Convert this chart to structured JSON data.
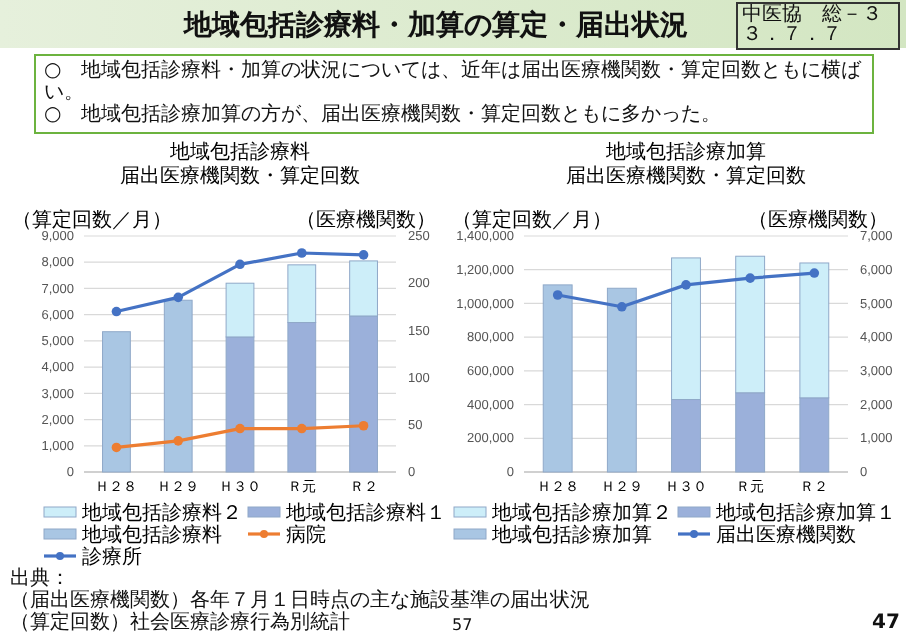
{
  "chart_data": [
    {
      "type": "bar",
      "stacked": true,
      "title": "地域包括診療料",
      "subtitle": "届出医療機関数・算定回数",
      "ylabel": "（算定回数／月）",
      "y2label": "（医療機関数）",
      "categories": [
        "Ｈ２８",
        "Ｈ２９",
        "Ｈ３０",
        "Ｒ元",
        "Ｒ２"
      ],
      "series": [
        {
          "name": "地域包括診療料",
          "color": "#a9c6e3",
          "values": [
            5350,
            6550,
            null,
            null,
            null
          ]
        },
        {
          "name": "地域包括診療料１",
          "color": "#9bb0da",
          "values": [
            null,
            null,
            5150,
            5700,
            5950
          ]
        },
        {
          "name": "地域包括診療料２",
          "color": "#cdeef9",
          "values": [
            null,
            null,
            2050,
            2200,
            2100
          ]
        },
        {
          "name": "病院",
          "type": "line",
          "axis": "y2",
          "color": "#ed7d31",
          "values": [
            26,
            33,
            46,
            46,
            49
          ]
        },
        {
          "name": "診療所",
          "type": "line",
          "axis": "y2",
          "color": "#4472c4",
          "values": [
            170,
            185,
            220,
            232,
            230
          ]
        }
      ],
      "ylim": [
        0,
        9000
      ],
      "yticks": [
        0,
        {
          "value": 1000,
          "label": "1,000"
        },
        {
          "value": 2000,
          "label": "2,000"
        },
        {
          "value": 3000,
          "label": "3,000"
        },
        {
          "value": 4000,
          "label": "4,000"
        },
        {
          "value": 5000,
          "label": "5,000"
        },
        {
          "value": 6000,
          "label": "6,000"
        },
        {
          "value": 7000,
          "label": "7,000"
        },
        {
          "value": 8000,
          "label": "8,000"
        },
        {
          "value": 9000,
          "label": "9,000"
        }
      ],
      "y2lim": [
        0,
        250
      ],
      "y2ticks": [
        0,
        50,
        100,
        150,
        200,
        250
      ],
      "grid": "y",
      "legend": "bottom",
      "marker": "circle",
      "annotations": [
        "地域包括診療料・加算の算定・届出状況",
        "中医協　総－３",
        "３．７．７",
        "○　地域包括診療料・加算の状況については、近年は届出医療機関数・算定回数ともに横ばい。",
        "○　地域包括診療加算の方が、届出医療機関数・算定回数ともに多かった。",
        "出典：",
        "（届出医療機関数）各年７月１日時点の主な施設基準の届出状況",
        "（算定回数）社会医療診療行為別統計",
        "57",
        "47"
      ]
    },
    {
      "type": "bar",
      "stacked": true,
      "title": "地域包括診療加算",
      "subtitle": "届出医療機関数・算定回数",
      "ylabel": "（算定回数／月）",
      "y2label": "（医療機関数）",
      "categories": [
        "Ｈ２８",
        "Ｈ２９",
        "Ｈ３０",
        "Ｒ元",
        "Ｒ２"
      ],
      "series": [
        {
          "name": "地域包括診療加算",
          "color": "#a9c6e3",
          "values": [
            1110000,
            1090000,
            null,
            null,
            null
          ]
        },
        {
          "name": "地域包括診療加算１",
          "color": "#9bb0da",
          "values": [
            null,
            null,
            430000,
            470000,
            440000
          ]
        },
        {
          "name": "地域包括診療加算２",
          "color": "#cdeef9",
          "values": [
            null,
            null,
            840000,
            810000,
            800000
          ]
        },
        {
          "name": "届出医療機関数",
          "type": "line",
          "axis": "y2",
          "color": "#4472c4",
          "values": [
            5250,
            4900,
            5550,
            5750,
            5900
          ]
        }
      ],
      "ylim": [
        0,
        1400000
      ],
      "yticks": [
        0,
        {
          "value": 200000,
          "label": "200,000"
        },
        {
          "value": 400000,
          "label": "400,000"
        },
        {
          "value": 600000,
          "label": "600,000"
        },
        {
          "value": 800000,
          "label": "800,000"
        },
        {
          "value": 1000000,
          "label": "1,000,000"
        },
        {
          "value": 1200000,
          "label": "1,200,000"
        },
        {
          "value": 1400000,
          "label": "1,400,000"
        }
      ],
      "y2lim": [
        0,
        7000
      ],
      "y2ticks": [
        0,
        {
          "value": 1000,
          "label": "1,000"
        },
        {
          "value": 2000,
          "label": "2,000"
        },
        {
          "value": 3000,
          "label": "3,000"
        },
        {
          "value": 4000,
          "label": "4,000"
        },
        {
          "value": 5000,
          "label": "5,000"
        },
        {
          "value": 6000,
          "label": "6,000"
        },
        {
          "value": 7000,
          "label": "7,000"
        }
      ],
      "grid": "y",
      "legend": "bottom",
      "marker": "circle"
    }
  ]
}
